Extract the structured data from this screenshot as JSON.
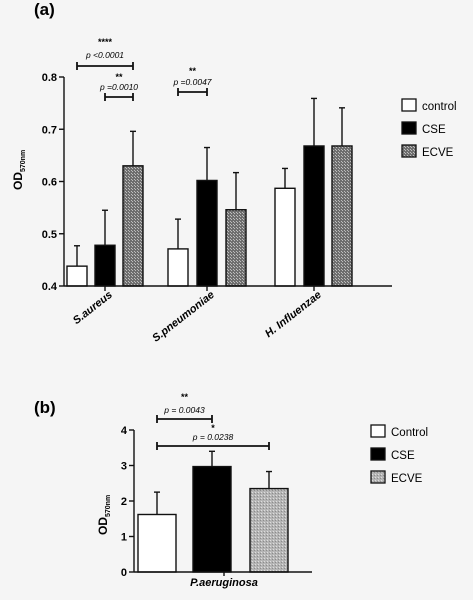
{
  "colors": {
    "control": "#ffffff",
    "cse": "#000000",
    "ecve": "#8a8a8a",
    "ink": "#111111"
  },
  "chart_data": [
    {
      "panel": "(a)",
      "type": "bar",
      "ylabel": "OD",
      "ylabel_sub": "570nm",
      "ylim": [
        0.4,
        0.8
      ],
      "yticks": [
        "0.4",
        "0.5",
        "0.6",
        "0.7",
        "0.8"
      ],
      "categories": [
        "S.aureus",
        "S.pneumoniae",
        "H. Influenzae"
      ],
      "series": [
        {
          "name": "control",
          "values": [
            0.438,
            0.471,
            0.587
          ],
          "errors": [
            0.039,
            0.057,
            0.038
          ]
        },
        {
          "name": "CSE",
          "values": [
            0.478,
            0.602,
            0.668
          ],
          "errors": [
            0.067,
            0.063,
            0.091
          ]
        },
        {
          "name": "ECVE",
          "values": [
            0.63,
            0.546,
            0.668
          ],
          "errors": [
            0.066,
            0.071,
            0.073
          ]
        }
      ],
      "legend_position": "right",
      "annotations": [
        {
          "stars": "****",
          "p_text": "p <0.0001",
          "category": 0,
          "from": 0,
          "to": 2
        },
        {
          "stars": "**",
          "p_text": "p =0.0010",
          "category": 0,
          "from": 1,
          "to": 2
        },
        {
          "stars": "**",
          "p_text": "p =0.0047",
          "category": 1,
          "from": 0,
          "to": 1
        }
      ]
    },
    {
      "panel": "(b)",
      "type": "bar",
      "ylabel": "OD",
      "ylabel_sub": "570nm",
      "ylim": [
        0,
        4
      ],
      "yticks": [
        "0",
        "1",
        "2",
        "3",
        "4"
      ],
      "categories": [
        "P.aeruginosa"
      ],
      "series": [
        {
          "name": "Control",
          "values": [
            1.62
          ],
          "errors": [
            0.63
          ]
        },
        {
          "name": "CSE",
          "values": [
            2.97
          ],
          "errors": [
            0.43
          ]
        },
        {
          "name": "ECVE",
          "values": [
            2.35
          ],
          "errors": [
            0.48
          ]
        }
      ],
      "legend_position": "right",
      "annotations": [
        {
          "stars": "**",
          "p_text": "p = 0.0043",
          "category": 0,
          "from": 0,
          "to": 1
        },
        {
          "stars": "*",
          "p_text": "p = 0.0238",
          "category": 0,
          "from": 0,
          "to": 2
        }
      ]
    }
  ]
}
